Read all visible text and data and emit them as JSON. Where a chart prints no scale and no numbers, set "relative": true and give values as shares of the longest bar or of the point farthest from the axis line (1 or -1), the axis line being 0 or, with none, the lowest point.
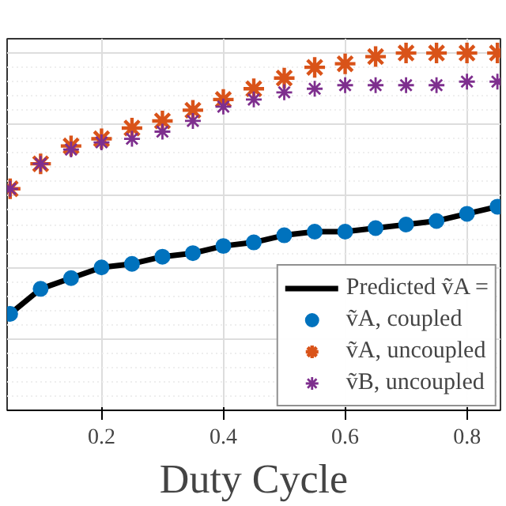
{
  "chart_data": {
    "type": "scatter",
    "xlabel": "Duty Cycle",
    "relative": true,
    "xlim": [
      0.045,
      0.855
    ],
    "xticks": [
      {
        "value": 0.2,
        "label": "0.2"
      },
      {
        "value": 0.4,
        "label": "0.4"
      },
      {
        "value": 0.6,
        "label": "0.6"
      },
      {
        "value": 0.8,
        "label": "0.8"
      }
    ],
    "tick_labels": "x",
    "grid": true,
    "legend": "bottom right",
    "series": [
      {
        "name": "Predicted ṽA =",
        "type": "line",
        "marker": "none",
        "line_style": "solid",
        "color": "#000000",
        "x": [
          0.05,
          0.1,
          0.15,
          0.2,
          0.25,
          0.3,
          0.35,
          0.4,
          0.45,
          0.5,
          0.55,
          0.6,
          0.65,
          0.7,
          0.75,
          0.8,
          0.85
        ],
        "values": [
          0.27,
          0.34,
          0.37,
          0.4,
          0.41,
          0.43,
          0.44,
          0.46,
          0.47,
          0.49,
          0.5,
          0.5,
          0.51,
          0.52,
          0.53,
          0.55,
          0.57
        ]
      },
      {
        "name": "ṽA, coupled",
        "marker": "circle",
        "color": "#0072bd",
        "x": [
          0.05,
          0.1,
          0.15,
          0.2,
          0.25,
          0.3,
          0.35,
          0.4,
          0.45,
          0.5,
          0.55,
          0.6,
          0.65,
          0.7,
          0.75,
          0.8,
          0.85
        ],
        "values": [
          0.27,
          0.34,
          0.37,
          0.4,
          0.41,
          0.43,
          0.44,
          0.46,
          0.47,
          0.49,
          0.5,
          0.5,
          0.51,
          0.52,
          0.53,
          0.55,
          0.57
        ]
      },
      {
        "name": "ṽA, uncoupled",
        "marker": "cross",
        "color": "#d95319",
        "x": [
          0.05,
          0.1,
          0.15,
          0.2,
          0.25,
          0.3,
          0.35,
          0.4,
          0.45,
          0.5,
          0.55,
          0.6,
          0.65,
          0.7,
          0.75,
          0.8,
          0.85
        ],
        "values": [
          0.62,
          0.69,
          0.74,
          0.76,
          0.79,
          0.81,
          0.84,
          0.87,
          0.9,
          0.93,
          0.96,
          0.97,
          0.99,
          1.0,
          1.0,
          1.0,
          1.0
        ]
      },
      {
        "name": "ṽB, uncoupled",
        "marker": "cross",
        "color": "#7e2f8e",
        "x": [
          0.05,
          0.1,
          0.15,
          0.2,
          0.25,
          0.3,
          0.35,
          0.4,
          0.45,
          0.5,
          0.55,
          0.6,
          0.65,
          0.7,
          0.75,
          0.8,
          0.85
        ],
        "values": [
          0.62,
          0.69,
          0.73,
          0.75,
          0.76,
          0.78,
          0.81,
          0.85,
          0.87,
          0.89,
          0.9,
          0.91,
          0.91,
          0.91,
          0.91,
          0.92,
          0.92
        ]
      }
    ]
  }
}
